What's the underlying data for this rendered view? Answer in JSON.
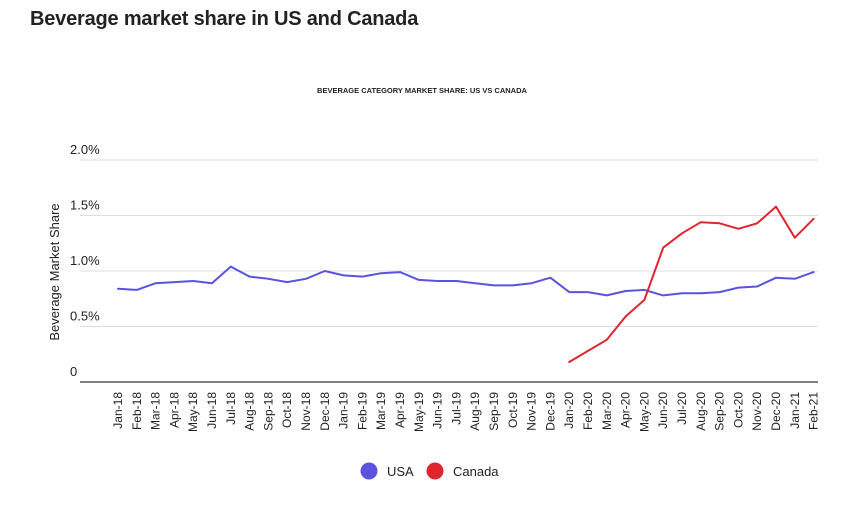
{
  "page_title": "Beverage market share in US and Canada",
  "colors": {
    "usa": "#5b52e0",
    "canada": "#e0252f",
    "grid": "#dddddd",
    "axis": "#333333"
  },
  "chart_data": {
    "type": "line",
    "title": "BEVERAGE CATEGORY MARKET SHARE: US VS CANADA",
    "xlabel": "",
    "ylabel": "Beverage Market Share",
    "ylim": [
      0,
      2.0
    ],
    "yticks": [
      {
        "value": 0,
        "label": "0"
      },
      {
        "value": 0.5,
        "label": "0.5%"
      },
      {
        "value": 1.0,
        "label": "1.0%"
      },
      {
        "value": 1.5,
        "label": "1.5%"
      },
      {
        "value": 2.0,
        "label": "2.0%"
      }
    ],
    "grid": true,
    "legend_position": "bottom",
    "categories": [
      "Jan-18",
      "Feb-18",
      "Mar-18",
      "Apr-18",
      "May-18",
      "Jun-18",
      "Jul-18",
      "Aug-18",
      "Sep-18",
      "Oct-18",
      "Nov-18",
      "Dec-18",
      "Jan-19",
      "Feb-19",
      "Mar-19",
      "Apr-19",
      "May-19",
      "Jun-19",
      "Jul-19",
      "Aug-19",
      "Sep-19",
      "Oct-19",
      "Nov-19",
      "Dec-19",
      "Jan-20",
      "Feb-20",
      "Mar-20",
      "Apr-20",
      "May-20",
      "Jun-20",
      "Jul-20",
      "Aug-20",
      "Sep-20",
      "Oct-20",
      "Nov-20",
      "Dec-20",
      "Jan-21",
      "Feb-21"
    ],
    "series": [
      {
        "name": "USA",
        "color_key": "usa",
        "values": [
          0.84,
          0.83,
          0.89,
          0.9,
          0.91,
          0.89,
          1.04,
          0.95,
          0.93,
          0.9,
          0.93,
          1.0,
          0.96,
          0.95,
          0.98,
          0.99,
          0.92,
          0.91,
          0.91,
          0.89,
          0.87,
          0.87,
          0.89,
          0.94,
          0.81,
          0.81,
          0.78,
          0.82,
          0.83,
          0.78,
          0.8,
          0.8,
          0.81,
          0.85,
          0.86,
          0.94,
          0.93,
          0.99
        ]
      },
      {
        "name": "Canada",
        "color_key": "canada",
        "values": [
          null,
          null,
          null,
          null,
          null,
          null,
          null,
          null,
          null,
          null,
          null,
          null,
          null,
          null,
          null,
          null,
          null,
          null,
          null,
          null,
          null,
          null,
          null,
          null,
          0.18,
          0.28,
          0.38,
          0.59,
          0.74,
          1.21,
          1.34,
          1.44,
          1.43,
          1.38,
          1.43,
          1.58,
          1.3,
          1.47
        ]
      }
    ]
  }
}
